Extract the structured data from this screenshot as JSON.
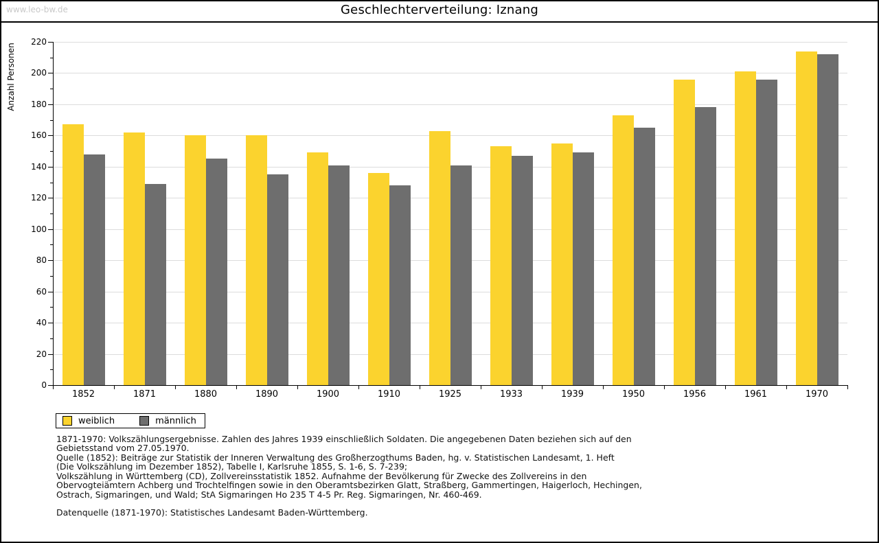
{
  "header": {
    "watermark": "www.leo-bw.de",
    "title": "Geschlechterverteilung: Iznang"
  },
  "chart_data": {
    "type": "bar",
    "title": "Geschlechterverteilung: Iznang",
    "xlabel": "",
    "ylabel": "Anzahl Personen",
    "categories": [
      "1852",
      "1871",
      "1880",
      "1890",
      "1900",
      "1910",
      "1925",
      "1933",
      "1939",
      "1950",
      "1956",
      "1961",
      "1970"
    ],
    "series": [
      {
        "name": "weiblich",
        "color": "#FBD32E",
        "values": [
          167,
          162,
          160,
          160,
          149,
          136,
          163,
          153,
          155,
          173,
          196,
          201,
          214
        ]
      },
      {
        "name": "männlich",
        "color": "#6E6E6E",
        "values": [
          148,
          129,
          145,
          135,
          141,
          128,
          141,
          147,
          149,
          165,
          178,
          196,
          212
        ]
      }
    ],
    "ylim": [
      0,
      220
    ],
    "ytick_step": 20,
    "yminor_step": 10,
    "grid": true,
    "legend_position": "bottom-left"
  },
  "legend": {
    "items": [
      {
        "label": "weiblich",
        "color": "#FBD32E"
      },
      {
        "label": "männlich",
        "color": "#6E6E6E"
      }
    ]
  },
  "footnotes": {
    "para1": [
      "1871-1970: Volkszählungsergebnisse. Zahlen des Jahres 1939 einschließlich Soldaten. Die angegebenen Daten beziehen sich auf den",
      "Gebietsstand vom 27.05.1970.",
      "Quelle (1852): Beiträge zur Statistik der Inneren Verwaltung des Großherzogthums Baden, hg. v. Statistischen Landesamt, 1. Heft",
      "(Die Volkszählung im Dezember 1852), Tabelle I, Karlsruhe 1855, S. 1-6, S. 7-239;",
      "Volkszählung in Württemberg (CD), Zollvereinsstatistik 1852. Aufnahme der Bevölkerung für Zwecke des Zollvereins in den",
      "Obervogteiämtern Achberg und Trochtelfingen sowie in den Oberamtsbezirken Glatt, Straßberg, Gammertingen, Haigerloch, Hechingen,",
      "Ostrach, Sigmaringen, und Wald; StA Sigmaringen Ho 235 T 4-5 Pr. Reg. Sigmaringen, Nr. 460-469."
    ],
    "para2": [
      "Datenquelle (1871-1970): Statistisches Landesamt Baden-Württemberg."
    ]
  },
  "colors": {
    "grid": "#DCDCDC",
    "axis": "#000000",
    "watermark": "#C9C9C9",
    "text": "#111111"
  }
}
